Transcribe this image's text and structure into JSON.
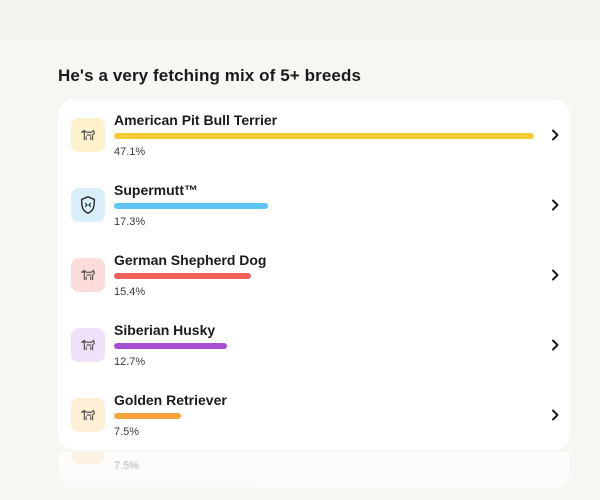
{
  "page": {
    "heading": "He's a very fetching mix of 5+ breeds"
  },
  "breeds": [
    {
      "name": "American Pit Bull Terrier",
      "percent_label": "47.1%",
      "percent": 47.1,
      "color": "#f6cc35",
      "icon_bg": "#fdf1cc",
      "icon": "pitbull-icon"
    },
    {
      "name": "Supermutt™",
      "percent_label": "17.3%",
      "percent": 17.3,
      "color": "#5ec4f2",
      "icon_bg": "#d9f0fb",
      "icon": "supermutt-shield-icon"
    },
    {
      "name": "German Shepherd Dog",
      "percent_label": "15.4%",
      "percent": 15.4,
      "color": "#f0605d",
      "icon_bg": "#fbdcdb",
      "icon": "german-shepherd-icon"
    },
    {
      "name": "Siberian Husky",
      "percent_label": "12.7%",
      "percent": 12.7,
      "color": "#a64fd3",
      "icon_bg": "#efe1f7",
      "icon": "husky-icon"
    },
    {
      "name": "Golden Retriever",
      "percent_label": "7.5%",
      "percent": 7.5,
      "color": "#f5a43a",
      "icon_bg": "#fdeed6",
      "icon": "golden-retriever-icon"
    }
  ],
  "ghost": {
    "percent_label": "7.5%"
  }
}
